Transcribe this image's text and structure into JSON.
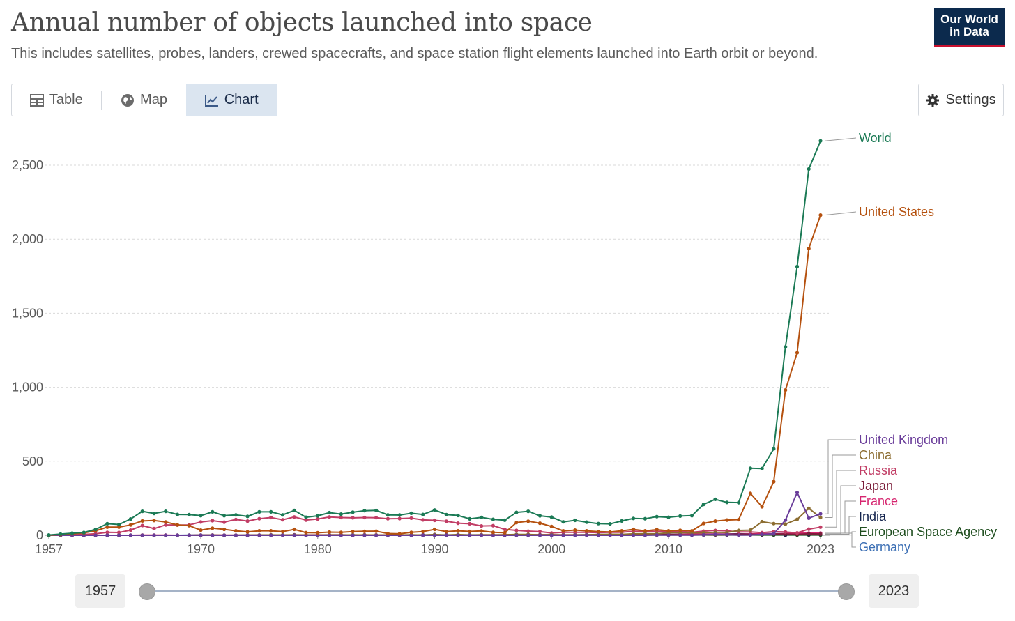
{
  "header": {
    "title": "Annual number of objects launched into space",
    "subtitle": "This includes satellites, probes, landers, crewed spacecrafts, and space station flight elements launched into Earth orbit or beyond.",
    "logo_line1": "Our World",
    "logo_line2": "in Data"
  },
  "tabs": [
    {
      "label": "Table",
      "icon": "table-icon"
    },
    {
      "label": "Map",
      "icon": "globe-icon"
    },
    {
      "label": "Chart",
      "icon": "line-chart-icon",
      "active": true
    }
  ],
  "settings": {
    "label": "Settings",
    "icon": "gear-icon"
  },
  "timeline": {
    "start_label": "1957",
    "end_label": "2023"
  },
  "chart_data": {
    "type": "line",
    "title": "Annual number of objects launched into space",
    "xlim": [
      1957,
      2023
    ],
    "ylim": [
      0,
      2700
    ],
    "x_ticks": [
      "1957",
      "1970",
      "1980",
      "1990",
      "2000",
      "2010",
      "2023"
    ],
    "y_ticks": [
      "0",
      "500",
      "1,000",
      "1,500",
      "2,000",
      "2,500"
    ],
    "grid": true,
    "legend_position": "right (line-end labels)",
    "series": [
      {
        "name": "World",
        "color": "#1b7a55",
        "values": [
          2,
          8,
          14,
          19,
          40,
          78,
          73,
          110,
          162,
          148,
          162,
          141,
          140,
          133,
          158,
          133,
          138,
          128,
          158,
          158,
          138,
          168,
          122,
          132,
          153,
          143,
          156,
          166,
          168,
          138,
          137,
          149,
          141,
          171,
          140,
          134,
          111,
          121,
          108,
          102,
          155,
          162,
          132,
          123,
          91,
          101,
          89,
          79,
          77,
          97,
          114,
          112,
          126,
          122,
          130,
          133,
          209,
          243,
          222,
          221,
          453,
          451,
          584,
          1272,
          1815,
          2474,
          2664
        ]
      },
      {
        "name": "United States",
        "color": "#b5510f",
        "values": [
          0,
          5,
          10,
          16,
          30,
          55,
          55,
          70,
          97,
          100,
          90,
          70,
          65,
          35,
          48,
          40,
          30,
          23,
          30,
          30,
          25,
          40,
          18,
          17,
          21,
          20,
          25,
          27,
          28,
          12,
          10,
          20,
          25,
          40,
          25,
          30,
          26,
          29,
          20,
          17,
          86,
          95,
          82,
          60,
          30,
          35,
          30,
          25,
          22,
          30,
          40,
          30,
          38,
          30,
          34,
          30,
          80,
          96,
          103,
          106,
          283,
          193,
          362,
          981,
          1233,
          1937,
          2163
        ]
      },
      {
        "name": "United Kingdom",
        "color": "#6a3d9a",
        "values": [
          0,
          0,
          0,
          0,
          0,
          0,
          0,
          0,
          0,
          0,
          0,
          0,
          0,
          1,
          0,
          0,
          0,
          0,
          0,
          0,
          0,
          0,
          0,
          0,
          0,
          0,
          0,
          0,
          0,
          0,
          0,
          0,
          0,
          0,
          0,
          0,
          0,
          0,
          0,
          0,
          0,
          0,
          0,
          0,
          0,
          0,
          1,
          0,
          0,
          0,
          0,
          0,
          2,
          1,
          1,
          1,
          3,
          6,
          4,
          1,
          2,
          6,
          10,
          102,
          289,
          116,
          145
        ]
      },
      {
        "name": "China",
        "color": "#8c6d31",
        "values": [
          0,
          0,
          0,
          0,
          0,
          0,
          0,
          0,
          0,
          0,
          0,
          0,
          0,
          1,
          1,
          0,
          0,
          1,
          1,
          3,
          2,
          2,
          1,
          0,
          2,
          1,
          3,
          2,
          2,
          2,
          2,
          4,
          1,
          5,
          1,
          5,
          2,
          3,
          2,
          4,
          6,
          6,
          2,
          4,
          2,
          2,
          4,
          5,
          7,
          6,
          10,
          11,
          10,
          17,
          18,
          16,
          17,
          20,
          19,
          33,
          35,
          92,
          79,
          76,
          108,
          182,
          120
        ]
      },
      {
        "name": "Russia",
        "color": "#c13d65",
        "values": [
          0,
          1,
          3,
          6,
          10,
          20,
          19,
          35,
          66,
          45,
          70,
          69,
          70,
          90,
          99,
          89,
          107,
          96,
          112,
          120,
          105,
          124,
          103,
          110,
          124,
          120,
          118,
          120,
          119,
          112,
          113,
          116,
          104,
          101,
          95,
          82,
          78,
          63,
          65,
          40,
          33,
          28,
          25,
          15,
          20,
          20,
          20,
          18,
          20,
          20,
          28,
          25,
          27,
          25,
          27,
          20,
          28,
          33,
          30,
          22,
          22,
          18,
          24,
          22,
          16,
          42,
          55
        ]
      },
      {
        "name": "Japan",
        "color": "#7b1e3a",
        "values": [
          0,
          0,
          0,
          0,
          0,
          0,
          0,
          0,
          0,
          0,
          0,
          0,
          0,
          1,
          1,
          0,
          1,
          1,
          1,
          2,
          2,
          3,
          2,
          2,
          3,
          3,
          2,
          3,
          2,
          2,
          3,
          2,
          2,
          3,
          2,
          2,
          1,
          2,
          1,
          1,
          2,
          2,
          3,
          3,
          1,
          2,
          2,
          3,
          3,
          4,
          4,
          4,
          5,
          6,
          3,
          2,
          4,
          4,
          4,
          5,
          6,
          5,
          9,
          8,
          6,
          10,
          8
        ]
      },
      {
        "name": "France",
        "color": "#d6256f",
        "values": [
          0,
          0,
          0,
          0,
          0,
          0,
          0,
          0,
          1,
          1,
          1,
          0,
          0,
          1,
          1,
          1,
          0,
          0,
          1,
          1,
          1,
          1,
          1,
          1,
          1,
          1,
          1,
          1,
          2,
          2,
          2,
          2,
          2,
          2,
          2,
          2,
          2,
          3,
          3,
          3,
          4,
          4,
          4,
          4,
          3,
          3,
          3,
          3,
          3,
          3,
          3,
          4,
          4,
          5,
          6,
          7,
          7,
          8,
          7,
          7,
          9,
          10,
          10,
          12,
          14,
          15,
          14
        ]
      },
      {
        "name": "India",
        "color": "#13234d",
        "values": [
          0,
          0,
          0,
          0,
          0,
          0,
          0,
          0,
          0,
          0,
          0,
          0,
          0,
          0,
          0,
          0,
          0,
          0,
          1,
          0,
          1,
          0,
          0,
          2,
          1,
          2,
          0,
          1,
          0,
          0,
          0,
          2,
          0,
          0,
          0,
          2,
          0,
          1,
          1,
          2,
          2,
          1,
          1,
          2,
          2,
          2,
          2,
          3,
          3,
          2,
          4,
          4,
          3,
          4,
          6,
          4,
          6,
          5,
          8,
          10,
          8,
          7,
          8,
          2,
          8,
          5,
          7
        ]
      },
      {
        "name": "European Space Agency",
        "color": "#1f4e1f",
        "values": [
          0,
          0,
          0,
          0,
          0,
          0,
          0,
          0,
          0,
          0,
          0,
          0,
          0,
          0,
          0,
          0,
          0,
          0,
          1,
          1,
          1,
          1,
          1,
          1,
          1,
          1,
          1,
          1,
          1,
          1,
          1,
          1,
          1,
          1,
          2,
          2,
          2,
          2,
          2,
          2,
          2,
          2,
          2,
          2,
          2,
          2,
          2,
          2,
          2,
          2,
          2,
          2,
          2,
          2,
          2,
          2,
          2,
          2,
          2,
          2,
          2,
          2,
          2,
          2,
          2,
          2,
          2
        ]
      },
      {
        "name": "Germany",
        "color": "#3c6fb4",
        "values": [
          0,
          0,
          0,
          0,
          0,
          0,
          0,
          0,
          0,
          0,
          0,
          0,
          1,
          1,
          1,
          0,
          0,
          1,
          1,
          1,
          1,
          0,
          1,
          0,
          1,
          1,
          2,
          2,
          1,
          2,
          2,
          1,
          3,
          4,
          3,
          3,
          3,
          3,
          3,
          3,
          5,
          4,
          4,
          4,
          3,
          3,
          4,
          5,
          5,
          4,
          5,
          4,
          5,
          6,
          6,
          7,
          8,
          9,
          8,
          8,
          9,
          10,
          11,
          12,
          10,
          13,
          14
        ]
      }
    ]
  }
}
